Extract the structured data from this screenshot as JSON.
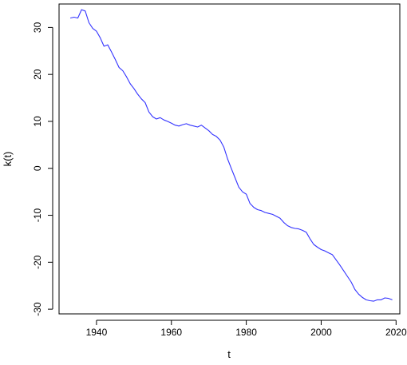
{
  "chart_data": {
    "type": "line",
    "title": "",
    "xlabel": "t",
    "ylabel": "k(t)",
    "xlim": [
      1930,
      2021
    ],
    "ylim": [
      -31,
      35
    ],
    "x_ticks": [
      1940,
      1960,
      1980,
      2000,
      2020
    ],
    "y_ticks": [
      -30,
      -20,
      -10,
      0,
      10,
      20,
      30
    ],
    "grid": false,
    "legend": "none",
    "series": [
      {
        "color": "#3333ff",
        "x": [
          1933,
          1934,
          1935,
          1936,
          1937,
          1938,
          1939,
          1940,
          1941,
          1942,
          1943,
          1944,
          1945,
          1946,
          1947,
          1948,
          1949,
          1950,
          1951,
          1952,
          1953,
          1954,
          1955,
          1956,
          1957,
          1958,
          1959,
          1960,
          1961,
          1962,
          1963,
          1964,
          1965,
          1966,
          1967,
          1968,
          1969,
          1970,
          1971,
          1972,
          1973,
          1974,
          1975,
          1976,
          1977,
          1978,
          1979,
          1980,
          1981,
          1982,
          1983,
          1984,
          1985,
          1986,
          1987,
          1988,
          1989,
          1990,
          1991,
          1992,
          1993,
          1994,
          1995,
          1996,
          1997,
          1998,
          1999,
          2000,
          2001,
          2002,
          2003,
          2004,
          2005,
          2006,
          2007,
          2008,
          2009,
          2010,
          2011,
          2012,
          2013,
          2014,
          2015,
          2016,
          2017,
          2018,
          2019
        ],
        "y": [
          32.0,
          32.2,
          32.0,
          33.8,
          33.5,
          31.0,
          29.8,
          29.2,
          27.8,
          26.0,
          26.3,
          24.8,
          23.2,
          21.5,
          20.8,
          19.5,
          18.0,
          17.0,
          15.8,
          14.8,
          14.0,
          12.0,
          11.0,
          10.5,
          10.8,
          10.3,
          10.0,
          9.6,
          9.2,
          9.0,
          9.3,
          9.5,
          9.2,
          9.0,
          8.8,
          9.2,
          8.6,
          8.0,
          7.2,
          6.8,
          6.0,
          4.5,
          2.0,
          0.0,
          -2.0,
          -4.0,
          -5.0,
          -5.5,
          -7.5,
          -8.3,
          -8.8,
          -9.0,
          -9.4,
          -9.6,
          -9.8,
          -10.2,
          -10.6,
          -11.5,
          -12.2,
          -12.6,
          -12.8,
          -12.9,
          -13.2,
          -13.6,
          -15.0,
          -16.2,
          -16.8,
          -17.3,
          -17.6,
          -18.0,
          -18.4,
          -19.5,
          -20.6,
          -21.8,
          -23.0,
          -24.2,
          -25.8,
          -26.8,
          -27.5,
          -28.0,
          -28.2,
          -28.3,
          -28.0,
          -28.0,
          -27.6,
          -27.7,
          -28.0
        ]
      }
    ]
  }
}
